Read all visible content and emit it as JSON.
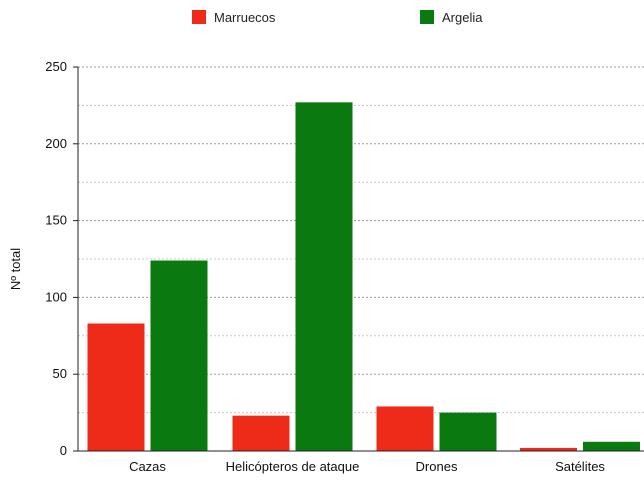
{
  "chart_data": {
    "type": "bar",
    "categories": [
      "Cazas",
      "Helicópteros de ataque",
      "Drones",
      "Satélites"
    ],
    "series": [
      {
        "name": "Marruecos",
        "color": "#ee2b18",
        "values": [
          83,
          23,
          29,
          2
        ]
      },
      {
        "name": "Argelia",
        "color": "#0a7a10",
        "values": [
          124,
          227,
          25,
          6
        ]
      }
    ],
    "ylabel": "Nº total",
    "xlabel": "",
    "ylim": [
      0,
      250
    ],
    "yticks": [
      0,
      50,
      100,
      150,
      200,
      250
    ],
    "grid": true,
    "legend_position": "top"
  }
}
